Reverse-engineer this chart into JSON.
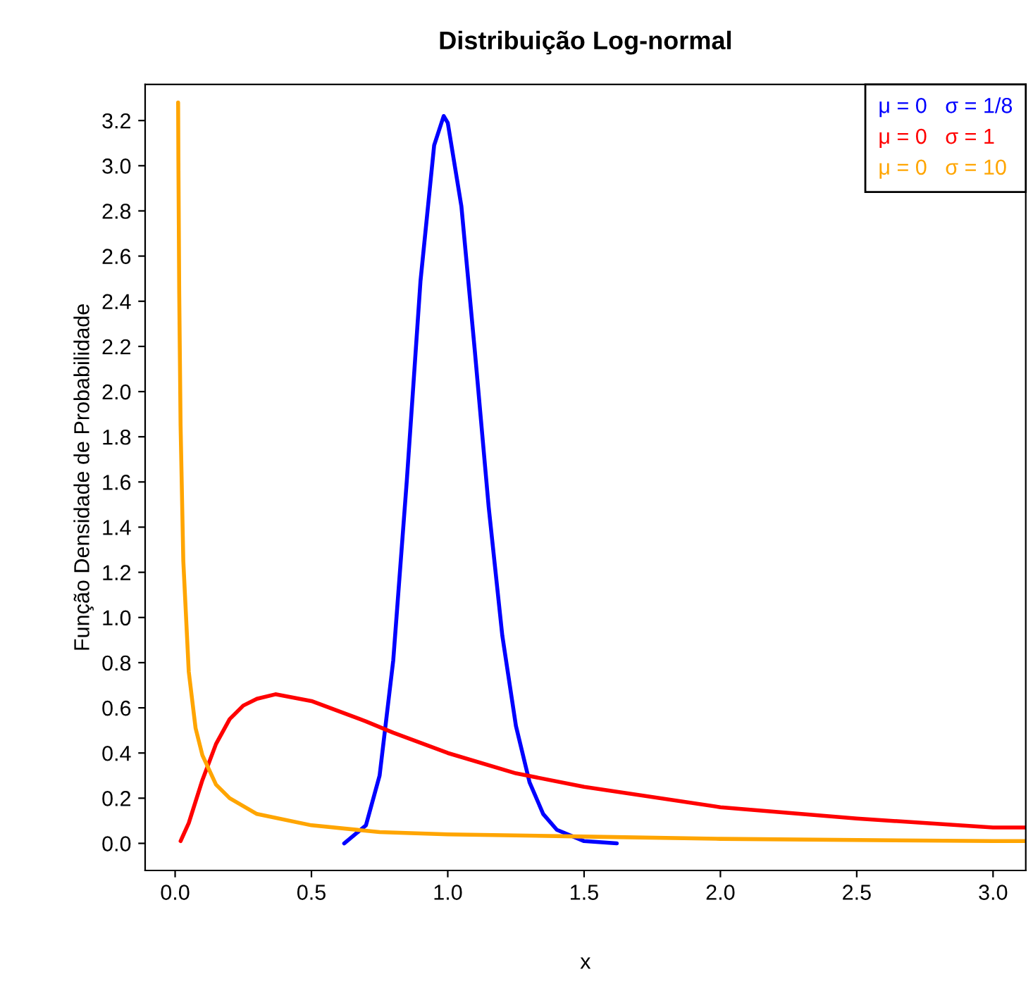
{
  "chart_data": {
    "type": "line",
    "title": "Distribuição Log-normal",
    "xlabel": "x",
    "ylabel": "Função Densidade de Probabilidade",
    "xlim": [
      -0.11,
      3.12
    ],
    "ylim": [
      -0.12,
      3.36
    ],
    "xticks": [
      {
        "value": 0,
        "label": "0.0"
      },
      0.5,
      {
        "value": 1,
        "label": "1.0"
      },
      1.5,
      {
        "value": 2,
        "label": "2.0"
      },
      2.5,
      {
        "value": 3,
        "label": "3.0"
      }
    ],
    "yticks": [
      {
        "value": 0,
        "label": "0.0"
      },
      0.2,
      0.4,
      0.6,
      0.8,
      {
        "value": 1,
        "label": "1.0"
      },
      1.2,
      1.4,
      1.6,
      1.8,
      {
        "value": 2,
        "label": "2.0"
      },
      2.2,
      2.4,
      2.6,
      2.8,
      {
        "value": 3,
        "label": "3.0"
      },
      3.2
    ],
    "grid": false,
    "legend": "top right",
    "marker": "none",
    "line_style": "solid",
    "series": [
      {
        "name": "μ = 0   σ = 1/8",
        "color": "#0000ff",
        "x": [
          0.62,
          0.7,
          0.75,
          0.8,
          0.85,
          0.9,
          0.95,
          0.985,
          1.0,
          1.05,
          1.1,
          1.15,
          1.2,
          1.25,
          1.3,
          1.35,
          1.4,
          1.5,
          1.62
        ],
        "values": [
          0.0,
          0.08,
          0.3,
          0.81,
          1.61,
          2.49,
          3.09,
          3.22,
          3.19,
          2.82,
          2.17,
          1.49,
          0.92,
          0.52,
          0.27,
          0.13,
          0.06,
          0.01,
          0.0
        ]
      },
      {
        "name": "μ = 0   σ = 1",
        "color": "#ff0000",
        "x": [
          0.02,
          0.05,
          0.1,
          0.15,
          0.2,
          0.25,
          0.3,
          0.368,
          0.5,
          0.7,
          0.8,
          1.0,
          1.25,
          1.5,
          2.0,
          2.5,
          3.0,
          3.12
        ],
        "values": [
          0.01,
          0.09,
          0.28,
          0.44,
          0.55,
          0.61,
          0.64,
          0.66,
          0.63,
          0.54,
          0.49,
          0.4,
          0.31,
          0.25,
          0.16,
          0.11,
          0.07,
          0.07
        ]
      },
      {
        "name": "μ = 0   σ = 10",
        "color": "#ffa500",
        "x": [
          0.011,
          0.012,
          0.015,
          0.02,
          0.03,
          0.05,
          0.075,
          0.1,
          0.15,
          0.2,
          0.3,
          0.5,
          0.75,
          1.0,
          1.5,
          2.0,
          3.0,
          3.12
        ],
        "values": [
          3.28,
          3.02,
          2.44,
          1.85,
          1.25,
          0.76,
          0.51,
          0.39,
          0.26,
          0.2,
          0.13,
          0.08,
          0.05,
          0.04,
          0.03,
          0.02,
          0.01,
          0.01
        ]
      }
    ]
  }
}
